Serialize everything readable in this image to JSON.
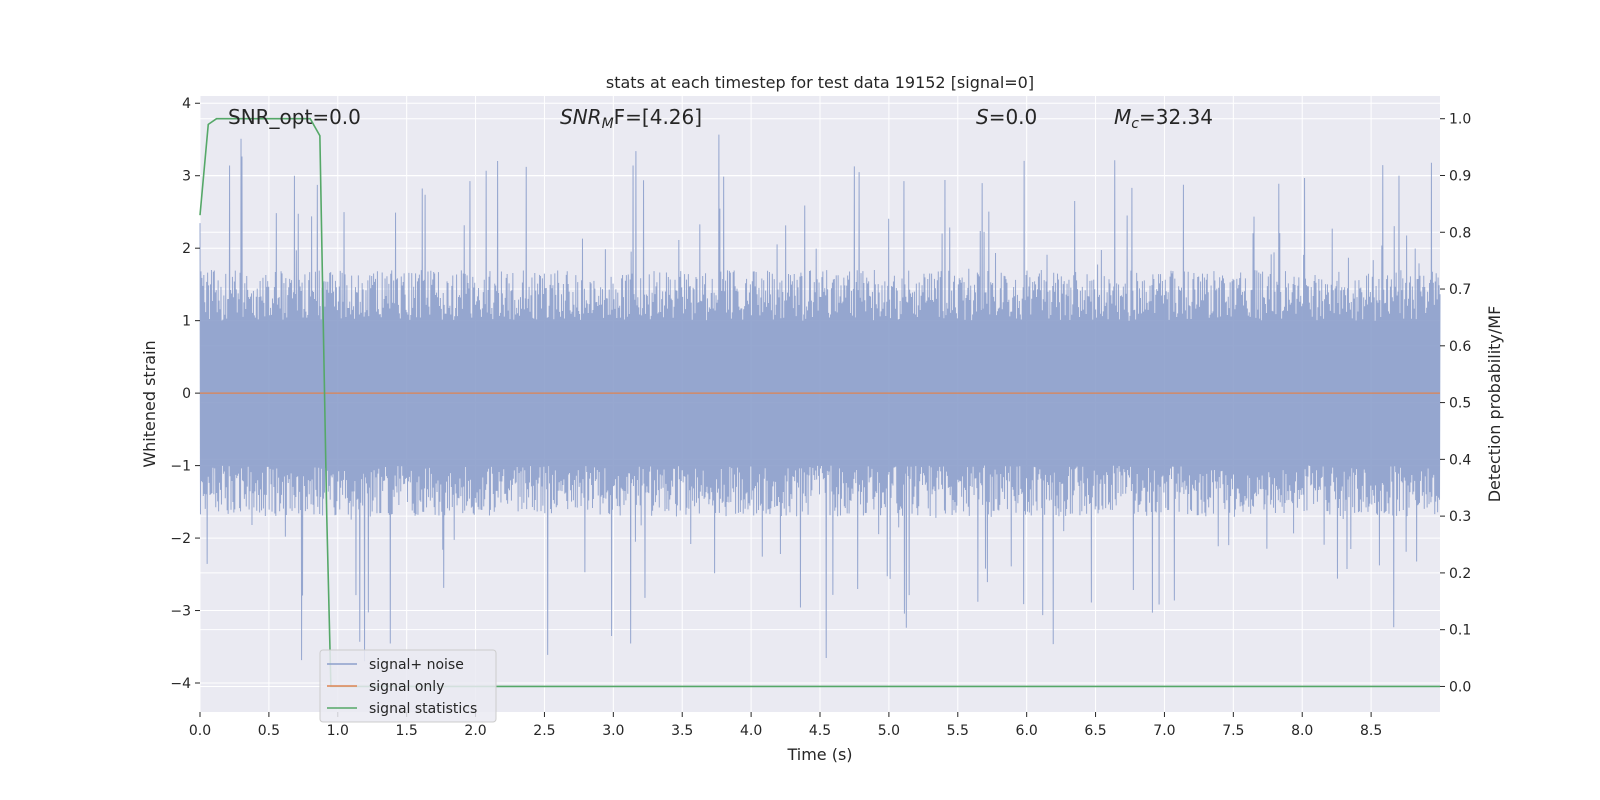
{
  "chart_data": {
    "type": "line",
    "title": "stats at each timestep for test data 19152 [signal=0]",
    "xlabel": "Time (s)",
    "ylabel": "Whitened strain",
    "y2label": "Detection probability/MF",
    "xlim": [
      0,
      9.0
    ],
    "ylim": [
      -4.4,
      4.1
    ],
    "y2lim": [
      -0.045,
      1.04
    ],
    "x_ticks": [
      0,
      0.5,
      1.0,
      1.5,
      2.0,
      2.5,
      3.0,
      3.5,
      4.0,
      4.5,
      5.0,
      5.5,
      6.0,
      6.5,
      7.0,
      7.5,
      8.0,
      8.5
    ],
    "x_tick_labels": [
      "0.0",
      "0.5",
      "1.0",
      "1.5",
      "2.0",
      "2.5",
      "3.0",
      "3.5",
      "4.0",
      "4.5",
      "5.0",
      "5.5",
      "6.0",
      "6.5",
      "7.0",
      "7.5",
      "8.0",
      "8.5"
    ],
    "y_ticks": [
      4,
      3,
      2,
      1,
      0,
      -1,
      -2,
      -3,
      -4
    ],
    "y_tick_labels": [
      "4",
      "3",
      "2",
      "1",
      "0",
      "−1",
      "−2",
      "−3",
      "−4"
    ],
    "y2_ticks": [
      1.0,
      0.9,
      0.8,
      0.7,
      0.6,
      0.5,
      0.4,
      0.3,
      0.2,
      0.1,
      0.0
    ],
    "y2_tick_labels": [
      "1.0",
      "0.9",
      "0.8",
      "0.7",
      "0.6",
      "0.5",
      "0.4",
      "0.3",
      "0.2",
      "0.1",
      "0.0"
    ],
    "grid": true,
    "legend_position": "lower-left",
    "annotations": {
      "snr_opt": "SNR_opt=0.0",
      "snr_mf_base": "SNR",
      "snr_mf_sub": "M",
      "snr_mf_rest": "F=[4.26]",
      "s_stat_var": "S",
      "s_stat_rest": "=0.0",
      "mc_base": "M",
      "mc_sub": "c",
      "mc_rest": "=32.34"
    },
    "series": [
      {
        "name": "signal+ noise",
        "axis": "left",
        "color": "#8c9fcb",
        "envelope": {
          "x_range": [
            0,
            9.0
          ],
          "typical_band": [
            -1.7,
            1.7
          ],
          "peak_max": 3.7,
          "peak_min": -4.0
        }
      },
      {
        "name": "signal only",
        "axis": "left",
        "color": "#dd8452",
        "x": [
          0,
          9.0
        ],
        "y": [
          0,
          0
        ]
      },
      {
        "name": "signal statistics",
        "axis": "right",
        "color": "#55a868",
        "x": [
          0,
          0.06,
          0.12,
          0.3,
          0.5,
          0.8,
          0.87,
          0.92,
          0.95,
          1.0,
          9.0
        ],
        "y": [
          0.83,
          0.99,
          1.0,
          1.0,
          1.0,
          1.0,
          0.97,
          0.3,
          0.0,
          0.0,
          0.0
        ]
      }
    ]
  }
}
